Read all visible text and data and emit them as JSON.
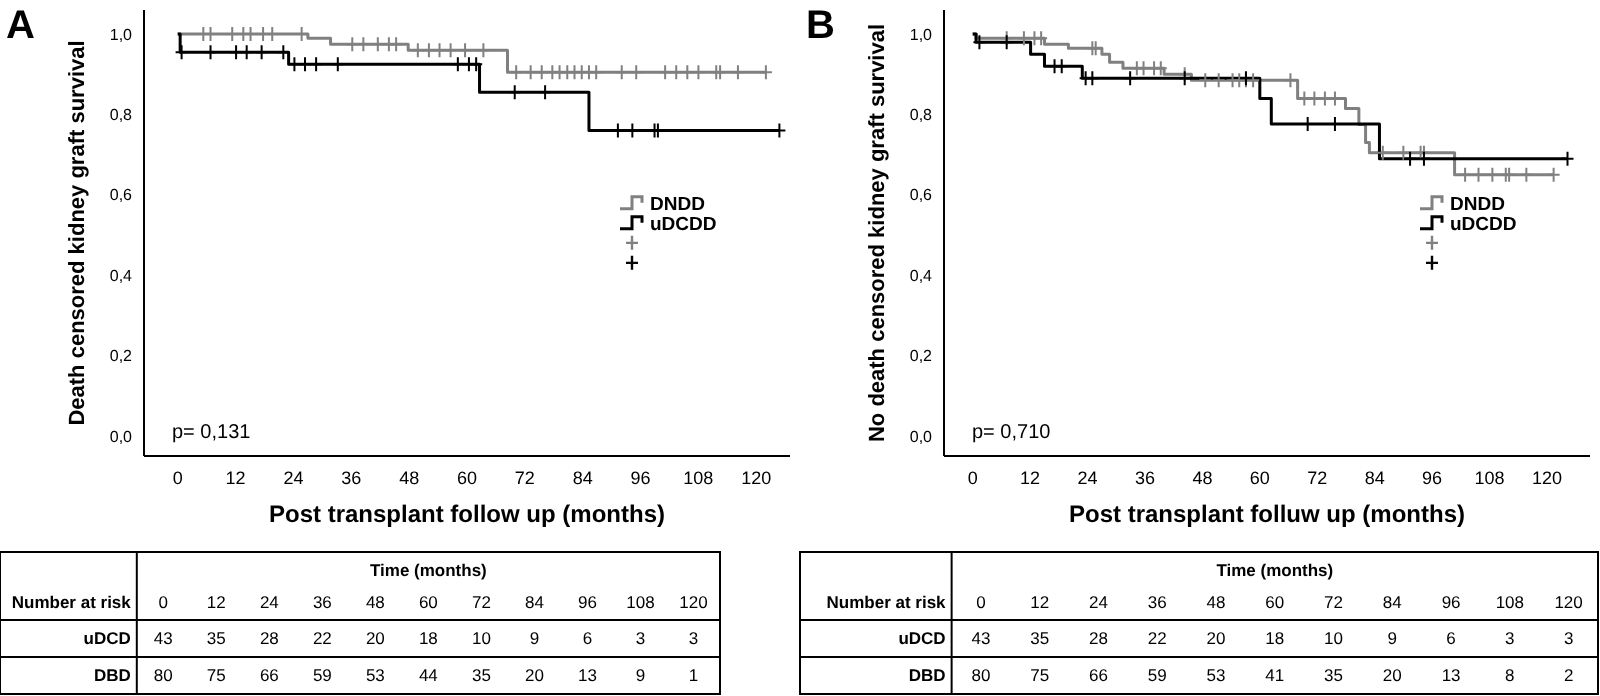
{
  "chart_data": [
    {
      "type": "step",
      "title": "A",
      "xlabel": "Post transplant follow up (months)",
      "ylabel": "Death censored kidney graft survival",
      "xlim": [
        -7,
        127
      ],
      "ylim": [
        -0.05,
        1.06
      ],
      "xticks": [
        0,
        12,
        24,
        36,
        48,
        60,
        72,
        84,
        96,
        108,
        120
      ],
      "yticks": [
        {
          "value": 0,
          "label": "0,0"
        },
        {
          "value": 0.2,
          "label": "0,2"
        },
        {
          "value": 0.4,
          "label": "0,4"
        },
        {
          "value": 0.6,
          "label": "0,6"
        },
        {
          "value": 0.8,
          "label": "0,8"
        },
        {
          "value": 1,
          "label": "1,0"
        }
      ],
      "legend": "right",
      "annotations": [
        "p= 0,131"
      ],
      "series": [
        {
          "name": "DNDD",
          "color": "#808080",
          "x": [
            0,
            27,
            31.7,
            47.8,
            68.4,
            122
          ],
          "values": [
            1,
            0.99,
            0.975,
            0.96,
            0.905,
            0.905
          ]
        },
        {
          "name": "uDCDD",
          "color": "#000000",
          "x": [
            0,
            0.5,
            23,
            62.6,
            85.3,
            124.8
          ],
          "values": [
            1,
            0.955,
            0.925,
            0.855,
            0.76,
            0.76
          ]
        },
        {
          "type": "scatter",
          "marker": "cross",
          "color": "#808080",
          "x": [
            5.3,
            6.8,
            11.3,
            13.6,
            15.1,
            17.7,
            19.6,
            25.7,
            36.2,
            38.5,
            41.5,
            43.8,
            45.3,
            49.8,
            52.1,
            54.3,
            56.6,
            59.6,
            63.4,
            70.2,
            73.2,
            75.5,
            77.7,
            79.2,
            80.8,
            82.3,
            83.8,
            85.3,
            86.8,
            92.1,
            95.1,
            101.1,
            103.4,
            105.7,
            108,
            111.7,
            112.5,
            116.2,
            122
          ],
          "values": [
            1,
            1,
            1,
            1,
            1,
            1,
            1,
            1,
            0.975,
            0.975,
            0.975,
            0.975,
            0.975,
            0.96,
            0.96,
            0.96,
            0.96,
            0.96,
            0.96,
            0.905,
            0.905,
            0.905,
            0.905,
            0.905,
            0.905,
            0.905,
            0.905,
            0.905,
            0.905,
            0.905,
            0.905,
            0.905,
            0.905,
            0.905,
            0.905,
            0.905,
            0.905,
            0.905,
            0.905
          ]
        },
        {
          "type": "scatter",
          "marker": "cross",
          "color": "#000000",
          "x": [
            0.8,
            6.8,
            12.1,
            14.3,
            17.4,
            21.9,
            24.2,
            26.4,
            28.7,
            33.2,
            58.1,
            60.4,
            61.9,
            69.9,
            76.2,
            91.3,
            94.3,
            98.9,
            99.6,
            124.8
          ],
          "values": [
            0.955,
            0.955,
            0.955,
            0.955,
            0.955,
            0.955,
            0.925,
            0.925,
            0.925,
            0.925,
            0.925,
            0.925,
            0.925,
            0.855,
            0.855,
            0.76,
            0.76,
            0.76,
            0.76,
            0.76
          ]
        }
      ]
    },
    {
      "type": "step",
      "title": "B",
      "xlabel": "Post transplant folluw up (months)",
      "ylabel": "No death censored kidney graft survival",
      "xlim": [
        -6,
        129
      ],
      "ylim": [
        -0.05,
        1.06
      ],
      "xticks": [
        0,
        12,
        24,
        36,
        48,
        60,
        72,
        84,
        96,
        108,
        120
      ],
      "yticks": [
        {
          "value": 0,
          "label": "0,0"
        },
        {
          "value": 0.2,
          "label": "0,2"
        },
        {
          "value": 0.4,
          "label": "0,4"
        },
        {
          "value": 0.6,
          "label": "0,6"
        },
        {
          "value": 0.8,
          "label": "0,8"
        },
        {
          "value": 1,
          "label": "1,0"
        }
      ],
      "legend": "right",
      "annotations": [
        "p= 0,710"
      ],
      "series": [
        {
          "name": "DNDD",
          "color": "#808080",
          "x": [
            0,
            0.7,
            15,
            20,
            27,
            28.6,
            31.4,
            40,
            45.7,
            67.9,
            77.9,
            80.7,
            82.1,
            82.9,
            100.7,
            121.4
          ],
          "values": [
            1,
            0.99,
            0.975,
            0.965,
            0.95,
            0.93,
            0.915,
            0.9,
            0.885,
            0.84,
            0.815,
            0.775,
            0.73,
            0.705,
            0.65,
            0.65
          ]
        },
        {
          "name": "uDCDD",
          "color": "#000000",
          "x": [
            0,
            0.7,
            12.1,
            15,
            22.9,
            60,
            62.4,
            85,
            124.3
          ],
          "values": [
            1,
            0.98,
            0.95,
            0.92,
            0.89,
            0.84,
            0.776,
            0.69,
            0.69
          ]
        },
        {
          "type": "scatter",
          "marker": "cross",
          "color": "#808080",
          "x": [
            7.1,
            10.7,
            12.9,
            14.3,
            25,
            25.7,
            34.3,
            35.7,
            37.9,
            39.3,
            44.3,
            48.6,
            51.4,
            54.3,
            55.7,
            57.1,
            58.6,
            66.4,
            69.3,
            71.4,
            73.6,
            75.7,
            85.7,
            90,
            93.6,
            94.3,
            102.9,
            105.7,
            108.6,
            111.4,
            112.1,
            115.7,
            121.4
          ],
          "values": [
            0.99,
            0.99,
            0.99,
            0.99,
            0.965,
            0.965,
            0.915,
            0.915,
            0.915,
            0.915,
            0.9,
            0.885,
            0.885,
            0.885,
            0.885,
            0.885,
            0.885,
            0.885,
            0.84,
            0.84,
            0.84,
            0.84,
            0.705,
            0.705,
            0.705,
            0.705,
            0.65,
            0.65,
            0.65,
            0.65,
            0.65,
            0.65,
            0.65
          ]
        },
        {
          "type": "scatter",
          "marker": "cross",
          "color": "#000000",
          "x": [
            1.4,
            7.1,
            17.1,
            18.6,
            23.6,
            25,
            32.9,
            44.3,
            57.1,
            70,
            75.7,
            91.4,
            94.3,
            124.3
          ],
          "values": [
            0.98,
            0.98,
            0.92,
            0.92,
            0.89,
            0.89,
            0.89,
            0.89,
            0.89,
            0.776,
            0.776,
            0.69,
            0.69,
            0.69
          ]
        }
      ]
    },
    {
      "type": "heatmap",
      "title": "Time (months)",
      "ylabel": "Number at risk",
      "data_labels": true,
      "categories": [
        "0",
        "12",
        "24",
        "36",
        "48",
        "60",
        "72",
        "84",
        "96",
        "108",
        "120"
      ],
      "y_categories": [
        "uDCD",
        "DBD"
      ],
      "cells": [
        [
          43,
          35,
          28,
          22,
          20,
          18,
          10,
          9,
          6,
          3,
          3
        ],
        [
          80,
          75,
          66,
          59,
          53,
          44,
          35,
          20,
          13,
          9,
          1
        ]
      ]
    },
    {
      "type": "heatmap",
      "title": "Time (months)",
      "ylabel": "Number at risk",
      "data_labels": true,
      "categories": [
        "0",
        "12",
        "24",
        "36",
        "48",
        "60",
        "72",
        "84",
        "96",
        "108",
        "120"
      ],
      "y_categories": [
        "uDCD",
        "DBD"
      ],
      "cells": [
        [
          43,
          35,
          28,
          22,
          20,
          18,
          10,
          9,
          6,
          3,
          3
        ],
        [
          80,
          75,
          66,
          59,
          53,
          41,
          35,
          20,
          13,
          8,
          2
        ]
      ]
    }
  ]
}
